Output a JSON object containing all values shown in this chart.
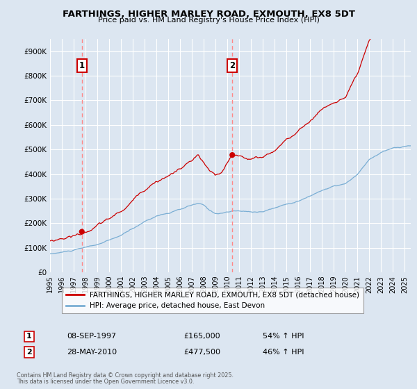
{
  "title": "FARTHINGS, HIGHER MARLEY ROAD, EXMOUTH, EX8 5DT",
  "subtitle": "Price paid vs. HM Land Registry's House Price Index (HPI)",
  "background_color": "#dce6f1",
  "plot_bg_color": "#dce6f1",
  "grid_color": "#ffffff",
  "red_line_color": "#cc0000",
  "blue_line_color": "#7aaed4",
  "marker_color": "#cc0000",
  "dashed_line_color": "#ff8888",
  "box_edge_color": "#cc0000",
  "ylim": [
    0,
    950000
  ],
  "yticks": [
    0,
    100000,
    200000,
    300000,
    400000,
    500000,
    600000,
    700000,
    800000,
    900000
  ],
  "ytick_labels": [
    "£0",
    "£100K",
    "£200K",
    "£300K",
    "£400K",
    "£500K",
    "£600K",
    "£700K",
    "£800K",
    "£900K"
  ],
  "xlim_start": 1995.0,
  "xlim_end": 2025.5,
  "xtick_years": [
    1995,
    1996,
    1997,
    1998,
    1999,
    2000,
    2001,
    2002,
    2003,
    2004,
    2005,
    2006,
    2007,
    2008,
    2009,
    2010,
    2011,
    2012,
    2013,
    2014,
    2015,
    2016,
    2017,
    2018,
    2019,
    2020,
    2021,
    2022,
    2023,
    2024,
    2025
  ],
  "event1_x": 1997.69,
  "event1_label": "1",
  "event1_price": 165000,
  "event1_date": "08-SEP-1997",
  "event1_pct": "54% ↑ HPI",
  "event2_x": 2010.41,
  "event2_label": "2",
  "event2_price": 477500,
  "event2_date": "28-MAY-2010",
  "event2_pct": "46% ↑ HPI",
  "legend_line1": "FARTHINGS, HIGHER MARLEY ROAD, EXMOUTH, EX8 5DT (detached house)",
  "legend_line2": "HPI: Average price, detached house, East Devon",
  "footer1": "Contains HM Land Registry data © Crown copyright and database right 2025.",
  "footer2": "This data is licensed under the Open Government Licence v3.0."
}
